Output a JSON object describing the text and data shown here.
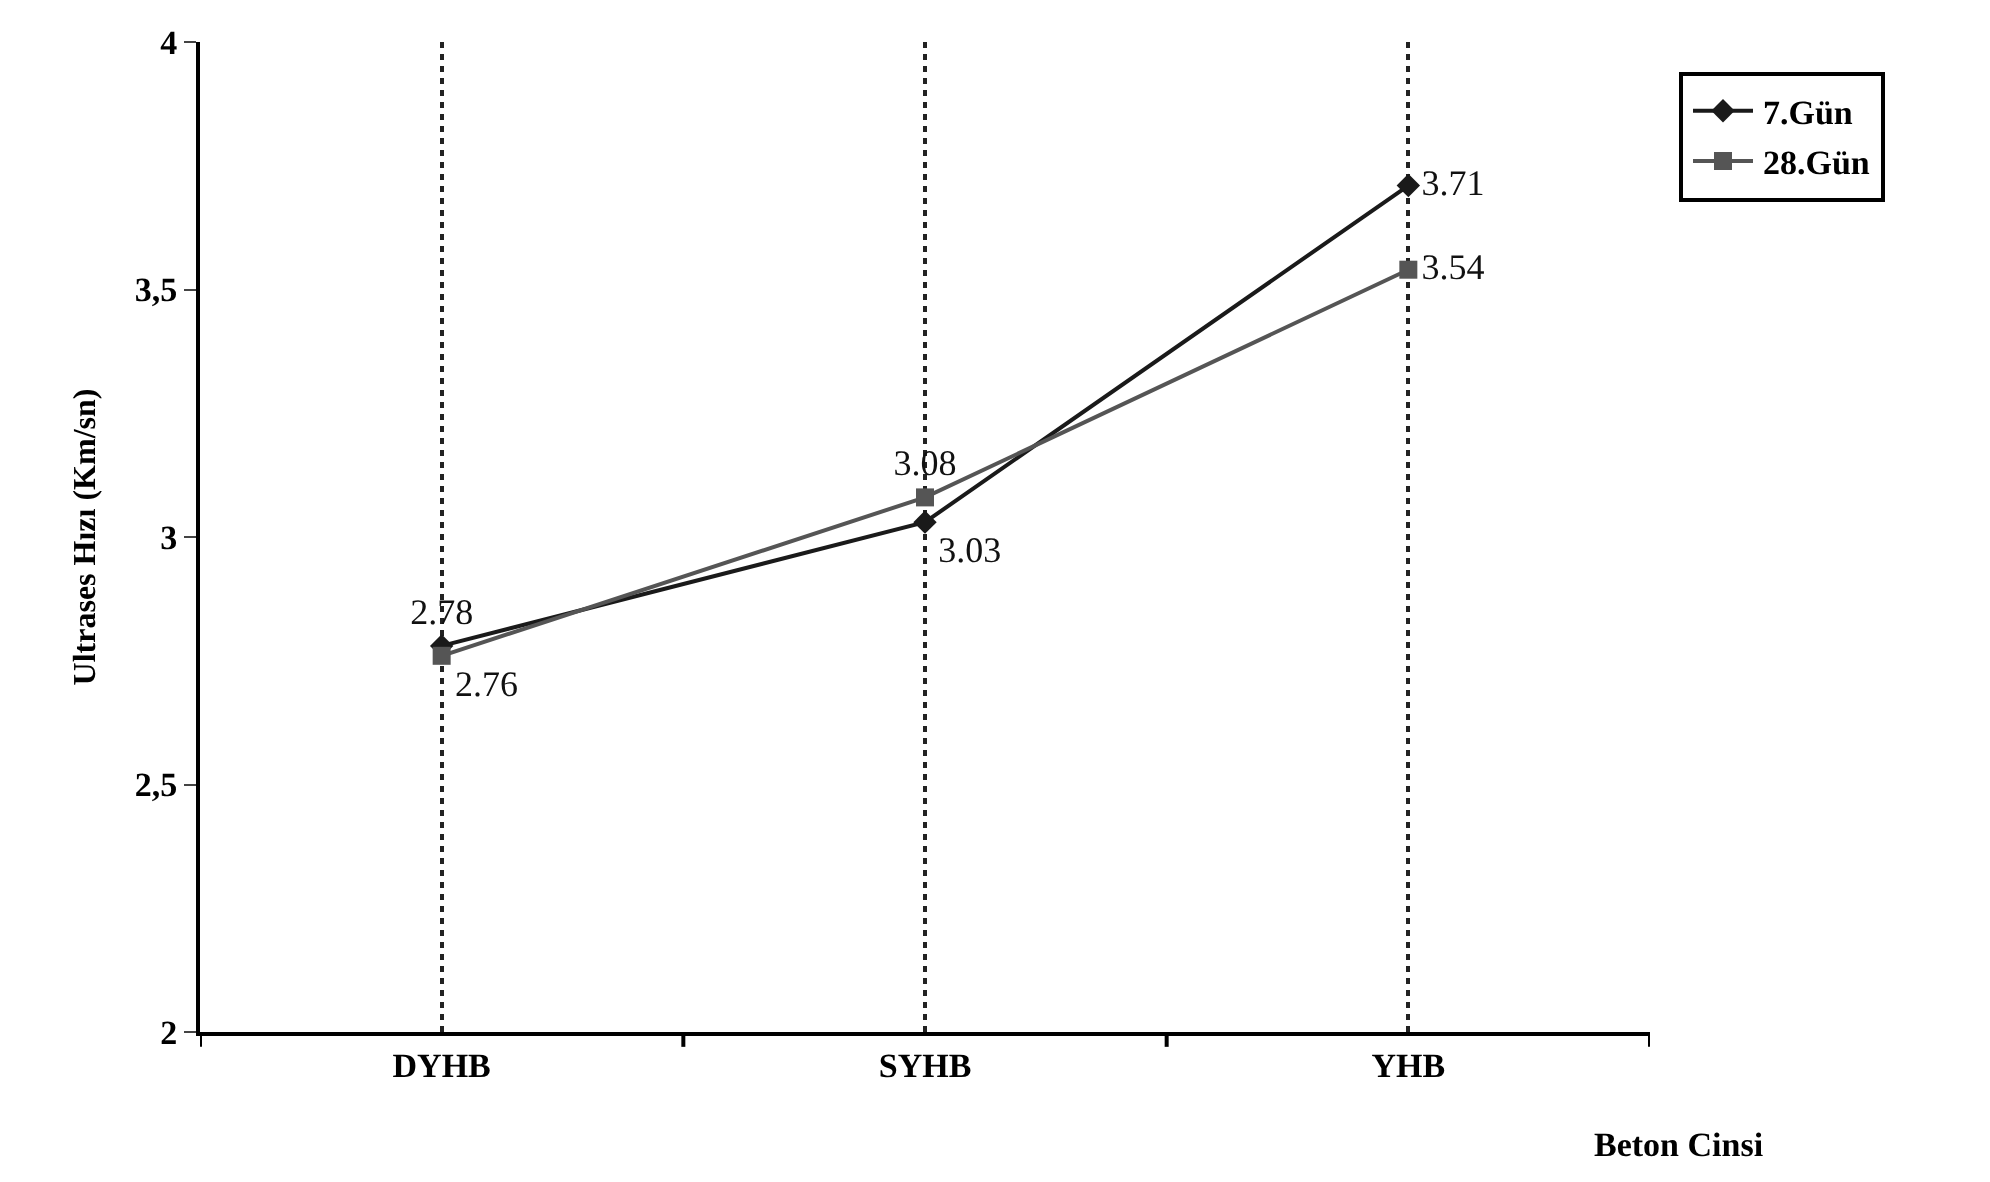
{
  "chart_data": {
    "type": "line",
    "xlabel": "Beton Cinsi",
    "ylabel": "Ultrases Hızı (Km/sn)",
    "categories": [
      "DYHB",
      "SYHB",
      "YHB"
    ],
    "series": [
      {
        "name": "7.Gün",
        "color": "#1a1a1a",
        "marker": "diamond",
        "values": [
          2.78,
          3.03,
          3.71
        ]
      },
      {
        "name": "28.Gün",
        "color": "#555555",
        "marker": "square",
        "values": [
          2.76,
          3.08,
          3.54
        ]
      }
    ],
    "ylim": [
      2,
      4
    ],
    "yticks": [
      2,
      {
        "value": 2.5,
        "label": "2,5"
      },
      3,
      {
        "value": 3.5,
        "label": "3,5"
      },
      4
    ],
    "grid": "x",
    "legend": "top right",
    "data_labels": true,
    "line_style": "solid"
  }
}
